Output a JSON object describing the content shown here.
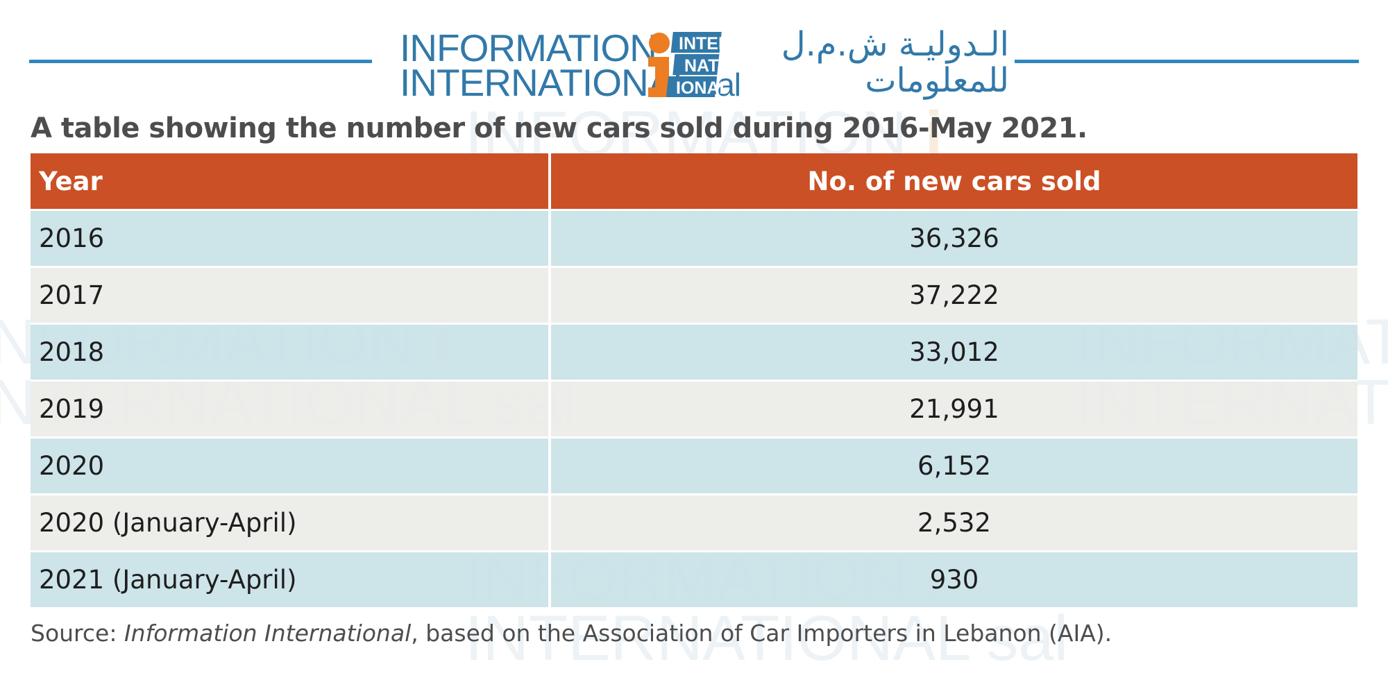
{
  "logo": {
    "line1": "INFORMATION",
    "line2": "INTERNATIONAL",
    "line2_suffix": "sal",
    "mark_letter": "i",
    "mark_word1": "INTER",
    "mark_word2": "NAT",
    "mark_word3": "IONAL",
    "arabic_line1": "الـدوليـة ش.م.ل",
    "arabic_line2": "للمعلومات",
    "colors": {
      "blue": "#3279a9",
      "orange": "#ec7d22"
    }
  },
  "chart_data": {
    "type": "table",
    "title": "A table showing the number of new cars sold during 2016-May 2021.",
    "columns": [
      "Year",
      "No. of new cars sold"
    ],
    "rows": [
      [
        "2016",
        "36,326"
      ],
      [
        "2017",
        "37,222"
      ],
      [
        "2018",
        "33,012"
      ],
      [
        "2019",
        "21,991"
      ],
      [
        "2020",
        "6,152"
      ],
      [
        "2020 (January-April)",
        "2,532"
      ],
      [
        "2021 (January-April)",
        "930"
      ]
    ],
    "header_color": "#cb5025",
    "row_colors": [
      "#c9e2e7",
      "#ecebe8"
    ]
  },
  "source": {
    "prefix": "Source: ",
    "italic": "Information International",
    "suffix": ", based on the Association of Car Importers in Lebanon (AIA)."
  }
}
